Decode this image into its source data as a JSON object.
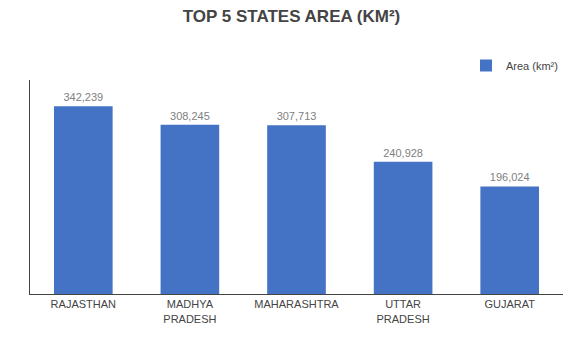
{
  "chart_data": {
    "type": "bar",
    "title": "TOP 5 STATES AREA (KM²)",
    "categories": [
      "RAJASTHAN",
      "MADHYA\nPRADESH",
      "MAHARASHTRA",
      "UTTAR\nPRADESH",
      "GUJARAT"
    ],
    "series": [
      {
        "name": "Area (km²)",
        "color": "#4472C4",
        "values": [
          342239,
          308245,
          307713,
          240928,
          196024
        ],
        "value_labels": [
          "342,239",
          "308,245",
          "307,713",
          "240,928",
          "196,024"
        ]
      }
    ],
    "ylim": [
      0,
      390000
    ],
    "yticks": [],
    "grid": false,
    "legend": "upper right",
    "data_labels": true,
    "tick_labels": "x"
  }
}
